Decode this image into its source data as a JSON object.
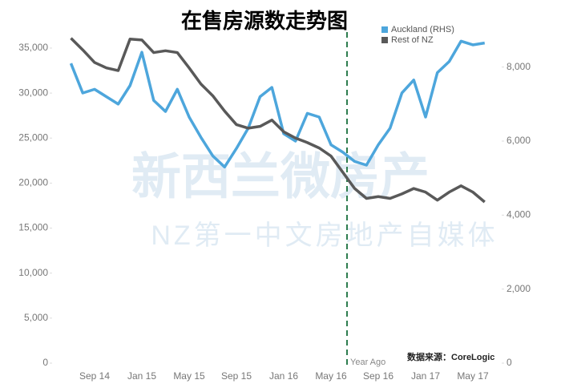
{
  "chart_data": {
    "type": "line",
    "title": "在售房源数走势图",
    "annotation": "Year Ago",
    "source": "数据来源：CoreLogic",
    "watermark": [
      "新西兰微房产",
      "NZ第一中文房地产自媒体"
    ],
    "categories": [
      null,
      null,
      "Sep 14",
      null,
      null,
      null,
      "Jan 15",
      null,
      null,
      null,
      "May 15",
      null,
      null,
      null,
      "Sep 15",
      null,
      null,
      null,
      "Jan 16",
      null,
      null,
      null,
      "May 16",
      null,
      null,
      null,
      "Sep 16",
      null,
      null,
      null,
      "Jan 17",
      null,
      null,
      null,
      "May 17",
      null
    ],
    "series": [
      {
        "name": "Auckland (RHS)",
        "color": "#4da6dc",
        "axis": "y2",
        "values": [
          8100,
          7300,
          7400,
          7200,
          7000,
          7500,
          8400,
          7100,
          6800,
          7400,
          6650,
          6100,
          5600,
          5300,
          5800,
          6350,
          7200,
          7450,
          6200,
          6000,
          6750,
          6650,
          5900,
          5700,
          5450,
          5350,
          5900,
          6350,
          7300,
          7650,
          6650,
          7850,
          8150,
          8700,
          8600,
          8650
        ]
      },
      {
        "name": "Rest of NZ",
        "color": "#595959",
        "values": [
          36100,
          34800,
          33400,
          32800,
          32500,
          36000,
          35900,
          34500,
          34700,
          34500,
          32800,
          31000,
          29700,
          28000,
          26500,
          26100,
          26300,
          27000,
          25700,
          25000,
          24500,
          23900,
          23000,
          21200,
          19400,
          18300,
          18500,
          18300,
          18800,
          19400,
          19000,
          18100,
          19000,
          19700,
          19000,
          17900
        ]
      }
    ],
    "ylim": [
      0,
      37000
    ],
    "yticks": [
      0,
      {
        "value": 5000,
        "label": "5,000"
      },
      {
        "value": 10000,
        "label": "10,000"
      },
      {
        "value": 15000,
        "label": "15,000"
      },
      {
        "value": 20000,
        "label": "20,000"
      },
      {
        "value": 25000,
        "label": "25,000"
      },
      {
        "value": 30000,
        "label": "30,000"
      },
      {
        "value": 35000,
        "label": "35,000"
      }
    ],
    "y2lim": [
      0,
      9000
    ],
    "y2ticks": [
      0,
      {
        "value": 2000,
        "label": "2,000"
      },
      {
        "value": 4000,
        "label": "4,000"
      },
      {
        "value": 6000,
        "label": "6,000"
      },
      {
        "value": 8000,
        "label": "8,000"
      }
    ],
    "grid": false,
    "legend": "top-right"
  }
}
